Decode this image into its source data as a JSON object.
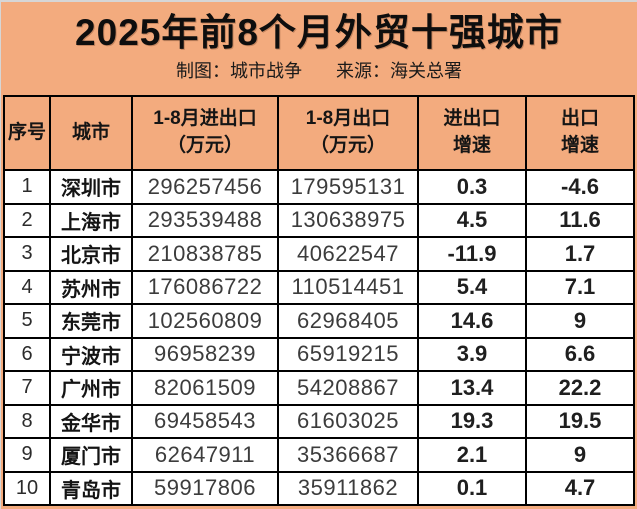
{
  "header": {
    "title": "2025年前8个月外贸十强城市",
    "credit": "制图：城市战争",
    "source": "来源：海关总署"
  },
  "colors": {
    "page_background": "#F3AB7E",
    "row_background": "#FFFFFF",
    "grid_border": "#000000",
    "title_text": "#0E0E0E"
  },
  "table_headers": [
    "序号",
    "城市",
    "1-8月进出口\n（万元）",
    "1-8月出口\n（万元）",
    "进出口\n增速",
    "出口\n增速"
  ],
  "chart_data": {
    "type": "table",
    "title": "2025年前8个月外贸十强城市",
    "columns": [
      "序号",
      "城市",
      "1-8月进出口（万元）",
      "1-8月出口（万元）",
      "进出口增速",
      "出口增速"
    ],
    "rows": [
      [
        1,
        "深圳市",
        296257456,
        179595131,
        0.3,
        -4.6
      ],
      [
        2,
        "上海市",
        293539488,
        130638975,
        4.5,
        11.6
      ],
      [
        3,
        "北京市",
        210838785,
        40622547,
        -11.9,
        1.7
      ],
      [
        4,
        "苏州市",
        176086722,
        110514451,
        5.4,
        7.1
      ],
      [
        5,
        "东莞市",
        102560809,
        62968405,
        14.6,
        9
      ],
      [
        6,
        "宁波市",
        96958239,
        65919215,
        3.9,
        6.6
      ],
      [
        7,
        "广州市",
        82061509,
        54208867,
        13.4,
        22.2
      ],
      [
        8,
        "金华市",
        69458543,
        61603025,
        19.3,
        19.5
      ],
      [
        9,
        "厦门市",
        62647911,
        35366687,
        2.1,
        9
      ],
      [
        10,
        "青岛市",
        59917806,
        35911862,
        0.1,
        4.7
      ]
    ]
  }
}
